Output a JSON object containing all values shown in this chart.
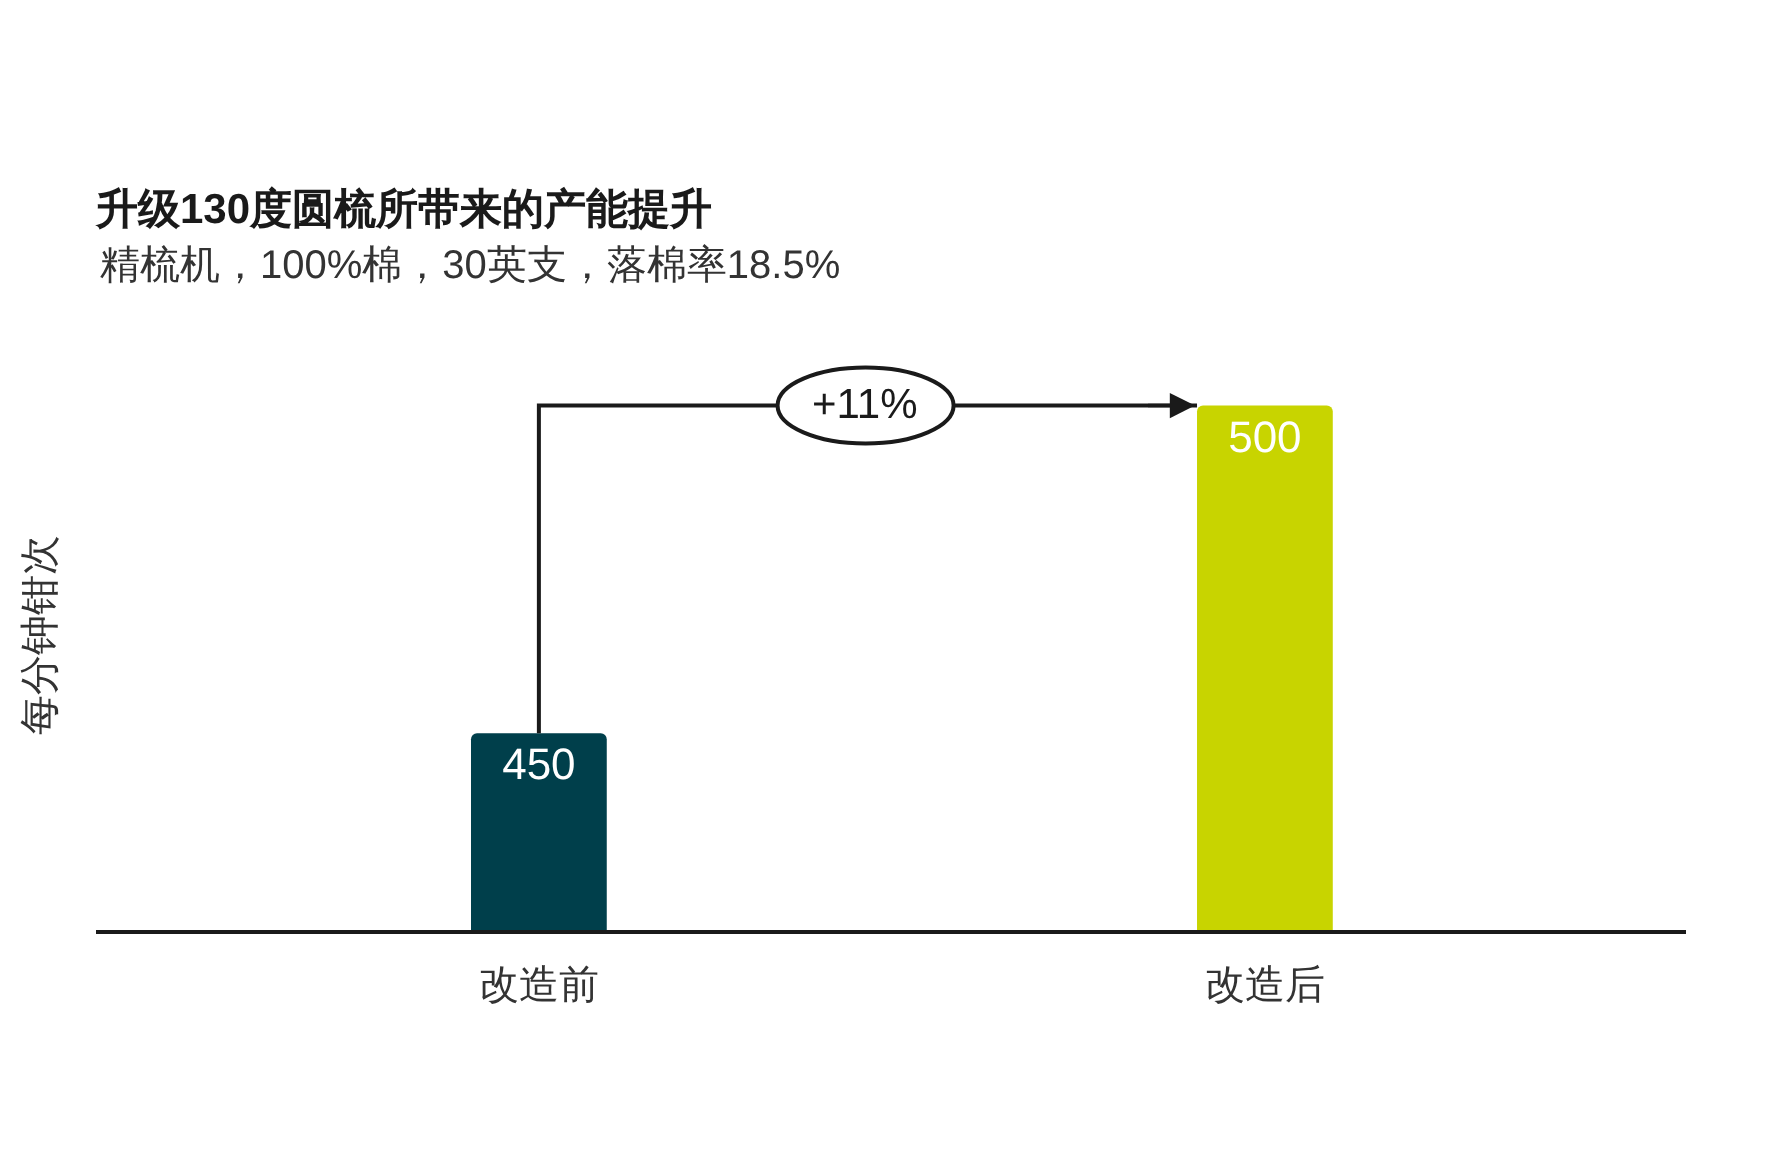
{
  "chart_data": {
    "type": "bar",
    "title": "升级130度圆梳所带来的产能提升",
    "subtitle": "精梳机，100%棉，30英支，落棉率18.5%",
    "ylabel": "每分钟钳次",
    "categories": [
      "改造前",
      "改造后"
    ],
    "values": [
      450,
      500
    ],
    "colors": [
      "#003f4b",
      "#c8d400"
    ],
    "tick_labels": "x",
    "data_labels": true,
    "annotations": [
      "+11%"
    ]
  }
}
